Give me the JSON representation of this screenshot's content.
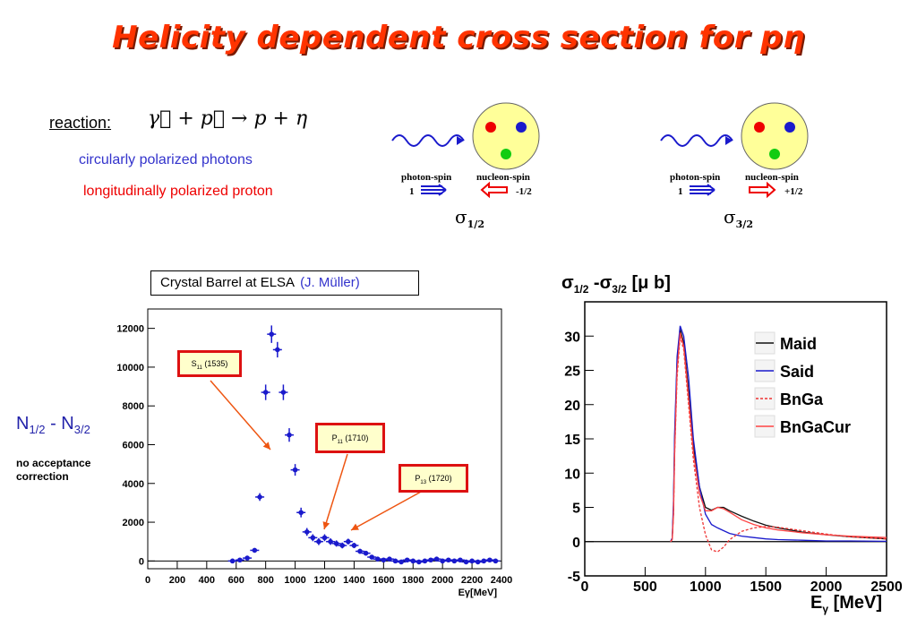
{
  "title": "Helicity dependent cross section for pη",
  "reaction": {
    "label": "reaction:",
    "equation": "γ⃗ + p⃗ → p + η",
    "photons": "circularly polarized photons",
    "proton": "longitudinally polarized proton"
  },
  "diagrams": [
    {
      "photon_label": "photon-spin",
      "photon_value": "1",
      "nucleon_label": "nucleon-spin",
      "nucleon_value": "-1/2",
      "sigma": "σ",
      "sigma_sub": "1/2"
    },
    {
      "photon_label": "photon-spin",
      "photon_value": "1",
      "nucleon_label": "nucleon-spin",
      "nucleon_value": "+1/2",
      "sigma": "σ",
      "sigma_sub": "3/2"
    }
  ],
  "colors": {
    "title": "#ff3300",
    "photon_blue": "#3333cc",
    "proton_red": "#ee0000",
    "data_blue": "#1a1acc",
    "nucleon_fill": "#ffff99"
  },
  "left_plot": {
    "caption": "Crystal Barrel at ELSA",
    "author": "(J. Müller)",
    "ylabel_main": "N",
    "ylabel_sub1": "1/2",
    "ylabel_mid": " - N",
    "ylabel_sub2": "3/2",
    "note": "no acceptance correction",
    "xlabel": "Eγ[MeV]",
    "resonances": [
      {
        "name": "S",
        "sub": "11",
        "mass": "(1535)"
      },
      {
        "name": "P",
        "sub": "11",
        "mass": "(1710)"
      },
      {
        "name": "P",
        "sub": "13",
        "mass": "(1720)"
      }
    ]
  },
  "right_plot": {
    "title_main": "σ",
    "title_sub1": "1/2",
    "title_mid": " -σ",
    "title_sub2": "3/2",
    "title_unit": " [μ b]",
    "xlabel_main": "E",
    "xlabel_sub": "γ",
    "xlabel_unit": " [MeV]"
  },
  "chart_data": [
    {
      "type": "scatter",
      "title": "Crystal Barrel at ELSA (J. Müller)",
      "xlabel": "Eγ[MeV]",
      "ylabel": "N1/2 - N3/2",
      "xlim": [
        0,
        2400
      ],
      "ylim": [
        -400,
        13000
      ],
      "xticks": [
        0,
        200,
        400,
        600,
        800,
        1000,
        1200,
        1400,
        1600,
        1800,
        2000,
        2200,
        2400
      ],
      "yticks": [
        0,
        2000,
        4000,
        6000,
        8000,
        10000,
        12000
      ],
      "series": [
        {
          "x": [
            575,
            625,
            675,
            725,
            760,
            800,
            840,
            880,
            920,
            960,
            1000,
            1040,
            1080,
            1120,
            1160,
            1200,
            1240,
            1280,
            1320,
            1360,
            1400,
            1440,
            1480,
            1520,
            1560,
            1600,
            1640,
            1680,
            1720,
            1760,
            1800,
            1840,
            1880,
            1920,
            1960,
            2000,
            2040,
            2080,
            2120,
            2160,
            2200,
            2240,
            2280,
            2320,
            2360
          ],
          "y": [
            0,
            50,
            150,
            550,
            3300,
            8700,
            11700,
            10900,
            8700,
            6500,
            4700,
            2500,
            1500,
            1200,
            1000,
            1200,
            1000,
            900,
            800,
            1000,
            800,
            500,
            400,
            200,
            100,
            50,
            100,
            0,
            -50,
            50,
            0,
            -50,
            0,
            50,
            100,
            0,
            50,
            0,
            50,
            -50,
            0,
            -50,
            0,
            50,
            0
          ],
          "err": [
            60,
            60,
            80,
            100,
            200,
            400,
            450,
            400,
            400,
            350,
            300,
            250,
            200,
            180,
            180,
            180,
            170,
            160,
            150,
            150,
            140,
            130,
            120,
            110,
            100,
            100,
            100,
            100,
            100,
            100,
            100,
            100,
            100,
            100,
            100,
            100,
            100,
            100,
            100,
            100,
            100,
            100,
            100,
            100,
            100
          ]
        }
      ],
      "annotations": [
        "S11 (1535)",
        "P11 (1710)",
        "P13 (1720)"
      ]
    },
    {
      "type": "line",
      "title": "σ1/2 -σ3/2 [μ b]",
      "xlabel": "Eγ [MeV]",
      "ylabel": "",
      "xlim": [
        0,
        2500
      ],
      "ylim": [
        -5,
        35
      ],
      "xticks": [
        0,
        500,
        1000,
        1500,
        2000,
        2500
      ],
      "yticks": [
        -5,
        0,
        5,
        10,
        15,
        20,
        25,
        30
      ],
      "legend": "right",
      "series": [
        {
          "name": "Maid",
          "color": "#111111",
          "style": "solid",
          "x": [
            710,
            725,
            735,
            745,
            765,
            790,
            820,
            860,
            900,
            950,
            1000,
            1050,
            1100,
            1150,
            1200,
            1300,
            1400,
            1500,
            1600,
            1800,
            2000,
            2200,
            2500
          ],
          "y": [
            0,
            0.5,
            5,
            15,
            26,
            31,
            29,
            22,
            14,
            8,
            5,
            4.6,
            5,
            5,
            4.5,
            3.7,
            3,
            2.4,
            2,
            1.4,
            1,
            0.7,
            0.4
          ]
        },
        {
          "name": "Said",
          "color": "#1a1acc",
          "style": "solid",
          "x": [
            710,
            725,
            735,
            745,
            765,
            790,
            820,
            860,
            900,
            950,
            1000,
            1050,
            1100,
            1150,
            1200,
            1300,
            1400,
            1500,
            1600,
            1800,
            2000,
            2200,
            2500
          ],
          "y": [
            0,
            0.5,
            6,
            16,
            27,
            31.5,
            30,
            24,
            15,
            8,
            4,
            2.5,
            2,
            1.6,
            1.2,
            0.8,
            0.6,
            0.4,
            0.3,
            0.2,
            0.1,
            0.1,
            0.05
          ]
        },
        {
          "name": "BnGa",
          "color": "#ee3333",
          "style": "dashed",
          "x": [
            710,
            725,
            735,
            745,
            765,
            790,
            820,
            860,
            900,
            950,
            1000,
            1050,
            1100,
            1150,
            1200,
            1300,
            1400,
            1500,
            1600,
            1800,
            2000,
            2200,
            2500
          ],
          "y": [
            0,
            0.3,
            4,
            13,
            24,
            30,
            28,
            20,
            12,
            5,
            1,
            -1.2,
            -1.5,
            -0.8,
            0.3,
            1.5,
            2,
            2.2,
            2.1,
            1.6,
            1.1,
            0.7,
            0.4
          ]
        },
        {
          "name": "BnGaCur",
          "color": "#ff4444",
          "style": "solid",
          "x": [
            710,
            725,
            735,
            745,
            765,
            790,
            820,
            860,
            900,
            950,
            1000,
            1050,
            1100,
            1150,
            1200,
            1300,
            1400,
            1500,
            1600,
            1800,
            2000,
            2200,
            2500
          ],
          "y": [
            0,
            0.3,
            4,
            13,
            25,
            30.5,
            28.5,
            21,
            13,
            7,
            4.5,
            4.5,
            5,
            4.8,
            4.3,
            3.2,
            2.5,
            2,
            1.7,
            1.3,
            1,
            0.8,
            0.6
          ]
        }
      ]
    }
  ]
}
